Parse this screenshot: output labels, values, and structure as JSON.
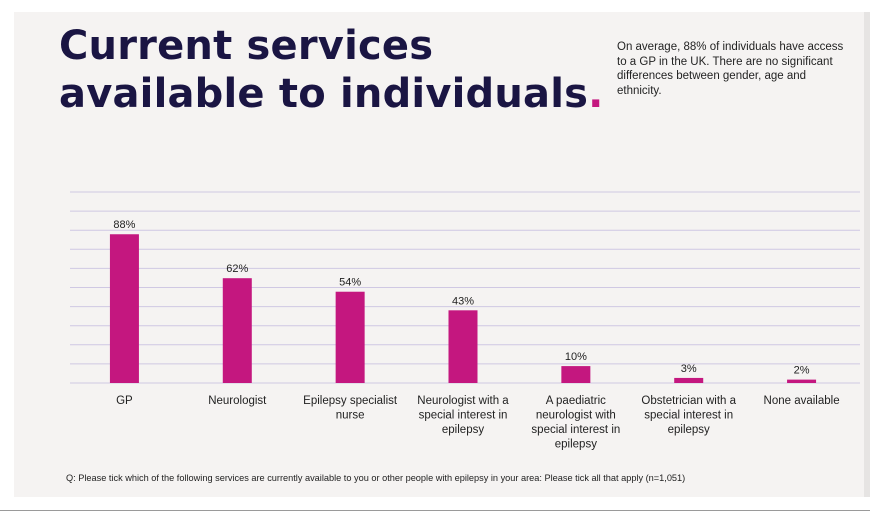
{
  "slide": {
    "title_line1": "Current services",
    "title_line2": "available to individuals",
    "title_dot": ".",
    "note": "On average, 88% of individuals have access to a GP in the UK. There are no significant differences between gender, age and ethnicity.",
    "footnote": "Q: Please tick which of the following services are currently available to you or other people with epilepsy in your area: Please tick all that apply (n=1,051)"
  },
  "colors": {
    "bar": "#c4177f",
    "title": "#1a1543",
    "gridline": "#cfc8e3",
    "background": "#f5f3f2"
  },
  "chart_data": {
    "type": "bar",
    "categories": [
      "GP",
      "Neurologist",
      "Epilepsy specialist nurse",
      "Neurologist with a special interest in epilepsy",
      "A paediatric neurologist with special interest in epilepsy",
      "Obstetrician with a special interest in epilepsy",
      "None available"
    ],
    "category_lines": [
      [
        "GP"
      ],
      [
        "Neurologist"
      ],
      [
        "Epilepsy specialist",
        "nurse"
      ],
      [
        "Neurologist with a",
        "special interest in",
        "epilepsy"
      ],
      [
        "A paediatric",
        "neurologist with",
        "special interest in",
        "epilepsy"
      ],
      [
        "Obstetrician with a",
        "special interest in",
        "epilepsy"
      ],
      [
        "None available"
      ]
    ],
    "values": [
      88,
      62,
      54,
      43,
      10,
      3,
      2
    ],
    "value_labels": [
      "88%",
      "62%",
      "54%",
      "43%",
      "10%",
      "3%",
      "2%"
    ],
    "ylim": [
      0,
      100
    ],
    "grid": true,
    "legend": "none"
  }
}
